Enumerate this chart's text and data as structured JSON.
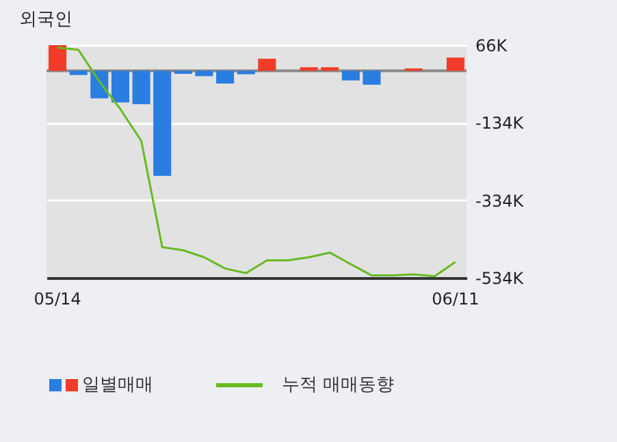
{
  "chart_data": {
    "type": "bar",
    "title": "외국인",
    "categories": [
      "05/14",
      null,
      null,
      null,
      null,
      null,
      null,
      null,
      null,
      null,
      null,
      null,
      null,
      null,
      null,
      null,
      null,
      null,
      null,
      "06/11"
    ],
    "series": [
      {
        "name": "일별매매",
        "colors": [
          "#f03c28",
          "#2a7de1",
          "#2a7de1",
          "#2a7de1",
          "#2a7de1",
          "#2a7de1",
          "#2a7de1",
          "#2a7de1",
          "#2a7de1",
          "#2a7de1",
          "#f03c28",
          "#f03c28",
          "#f03c28",
          "#f03c28",
          "#2a7de1",
          "#2a7de1",
          "#2a7de1",
          "#f03c28",
          "#f03c28",
          "#f03c28"
        ],
        "values": [
          66,
          -11,
          -71,
          -82,
          -86,
          -271,
          -8,
          -14,
          -33,
          -9,
          31,
          0,
          9,
          9,
          -25,
          -36,
          0,
          6,
          0,
          34
        ]
      },
      {
        "type": "line",
        "name": "누적 매매동향",
        "color": "#66bb22",
        "values": [
          60,
          54,
          -28,
          -99,
          -181,
          -455,
          -463,
          -481,
          -510,
          -522,
          -489,
          -489,
          -481,
          -469,
          -499,
          -528,
          -528,
          -525,
          -530,
          -493
        ]
      }
    ],
    "ylim": [
      -534,
      66
    ],
    "yticks": [
      {
        "value": 66,
        "label": "66K"
      },
      {
        "value": -134,
        "label": "-134K"
      },
      {
        "value": -334,
        "label": "-334K"
      },
      {
        "value": -534,
        "label": "-534K"
      }
    ],
    "ref_lines": [
      {
        "axis": "y",
        "value": 0,
        "color": "#888888"
      }
    ],
    "grid": "y",
    "legend": "bottom"
  }
}
